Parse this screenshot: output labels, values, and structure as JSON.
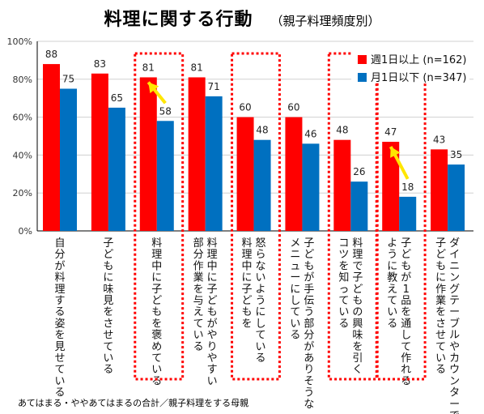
{
  "title": "料理に関する行動",
  "subtitle": "（親子料理頻度別）",
  "footnote": "あてはまる・ややあてはまるの合計／親子料理をする母親",
  "chart_data": {
    "type": "bar",
    "categories": [
      "自分が料理する姿を見せている",
      "子どもに味見をさせている",
      "料理中に子どもを褒めている",
      "料理中に子どもがやりやすい部分作業を与えている",
      "怒らないようにしている料理中に子どもを",
      "子どもが手伝う部分がありそうなメニューにしている",
      "料理で子どもの興味を引くコツを知っている",
      "子どもが1品を通して作れるように教えている",
      "ダイニングテーブルやカウンターで子どもに作業をさせている"
    ],
    "category_lines": [
      [
        "自分が料理する姿を見せている"
      ],
      [
        "子どもに味見をさせている"
      ],
      [
        "料理中に子どもを褒めている"
      ],
      [
        "料理中に子どもがやりやすい",
        "部分作業を与えている"
      ],
      [
        "怒らないようにしている",
        "料理中に子どもを"
      ],
      [
        "子どもが手伝う部分がありそうな",
        "メニューにしている"
      ],
      [
        "料理で子どもの興味を引く",
        "コツを知っている"
      ],
      [
        "子どもが1品を通して作れる",
        "ように教えている"
      ],
      [
        "ダイニングテーブルやカウンターで",
        "子どもに作業をさせている"
      ]
    ],
    "series": [
      {
        "name": "週1日以上 (n=162)",
        "color": "#ff0000",
        "values": [
          88,
          83,
          81,
          81,
          60,
          60,
          48,
          47,
          43
        ]
      },
      {
        "name": "月1日以下 (n=347)",
        "color": "#0070c0",
        "values": [
          75,
          65,
          58,
          71,
          48,
          46,
          26,
          18,
          35
        ]
      }
    ],
    "y_ticks": [
      "0%",
      "20%",
      "40%",
      "60%",
      "80%",
      "100%"
    ],
    "ylim": [
      0,
      100
    ],
    "grid": true,
    "legend": "top-right",
    "highlighted_categories": [
      2,
      4,
      6,
      7
    ],
    "arrows": [
      {
        "category": 2,
        "from_value": 58,
        "to_value": 81
      },
      {
        "category": 7,
        "from_value": 18,
        "to_value": 47
      }
    ]
  }
}
